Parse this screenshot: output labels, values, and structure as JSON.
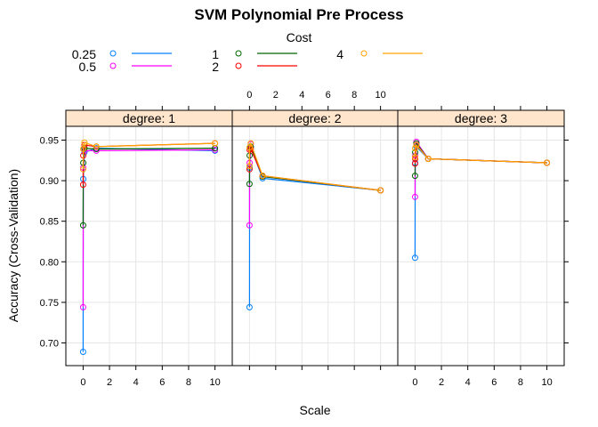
{
  "chart_data": {
    "type": "line",
    "title": "SVM Polynomial Pre Process",
    "xlabel": "Scale",
    "ylabel": "Accuracy (Cross-Validation)",
    "legend": {
      "title": "Cost",
      "placement": "top",
      "entries": [
        {
          "label": "0.25",
          "color": "#0080ff"
        },
        {
          "label": "0.5",
          "color": "#ff00ff"
        },
        {
          "label": "1",
          "color": "#006400"
        },
        {
          "label": "2",
          "color": "#ff0000"
        },
        {
          "label": "4",
          "color": "#ffa500"
        }
      ]
    },
    "x_ticks": [
      "0",
      "2",
      "4",
      "6",
      "8",
      "10"
    ],
    "y_ticks": [
      "0.70",
      "0.75",
      "0.80",
      "0.85",
      "0.90",
      "0.95"
    ],
    "xlim": [
      -0.5,
      10.5
    ],
    "ylim": [
      0.672,
      0.967
    ],
    "grid": true,
    "panels": [
      {
        "label": "degree: 1",
        "series": [
          {
            "name": "0.25",
            "x": [
              0.001,
              0.01,
              0.1,
              1,
              10
            ],
            "y": [
              0.689,
              0.902,
              0.935,
              0.94,
              0.937
            ]
          },
          {
            "name": "0.5",
            "x": [
              0.001,
              0.01,
              0.1,
              1,
              10
            ],
            "y": [
              0.744,
              0.916,
              0.937,
              0.937,
              0.938
            ]
          },
          {
            "name": "1",
            "x": [
              0.001,
              0.01,
              0.1,
              1,
              10
            ],
            "y": [
              0.845,
              0.922,
              0.94,
              0.939,
              0.94
            ]
          },
          {
            "name": "2",
            "x": [
              0.001,
              0.01,
              0.1,
              1,
              10
            ],
            "y": [
              0.895,
              0.931,
              0.944,
              0.942,
              0.946
            ]
          },
          {
            "name": "4",
            "x": [
              0.001,
              0.01,
              0.1,
              1,
              10
            ],
            "y": [
              0.914,
              0.939,
              0.947,
              0.942,
              0.946
            ]
          }
        ]
      },
      {
        "label": "degree: 2",
        "series": [
          {
            "name": "0.25",
            "x": [
              0.001,
              0.01,
              0.1,
              1,
              10
            ],
            "y": [
              0.744,
              0.916,
              0.941,
              0.903,
              0.888
            ]
          },
          {
            "name": "0.5",
            "x": [
              0.001,
              0.01,
              0.1,
              1,
              10
            ],
            "y": [
              0.845,
              0.922,
              0.945,
              0.905,
              0.888
            ]
          },
          {
            "name": "1",
            "x": [
              0.001,
              0.01,
              0.1,
              1,
              10
            ],
            "y": [
              0.896,
              0.931,
              0.942,
              0.905,
              0.888
            ]
          },
          {
            "name": "2",
            "x": [
              0.001,
              0.01,
              0.1,
              1,
              10
            ],
            "y": [
              0.914,
              0.938,
              0.939,
              0.906,
              0.888
            ]
          },
          {
            "name": "4",
            "x": [
              0.001,
              0.01,
              0.1,
              1,
              10
            ],
            "y": [
              0.918,
              0.941,
              0.946,
              0.906,
              0.888
            ]
          }
        ]
      },
      {
        "label": "degree: 3",
        "series": [
          {
            "name": "0.25",
            "x": [
              0.001,
              0.01,
              0.1,
              1,
              10
            ],
            "y": [
              0.805,
              0.922,
              0.942,
              0.927,
              0.922
            ]
          },
          {
            "name": "0.5",
            "x": [
              0.001,
              0.01,
              0.1,
              1,
              10
            ],
            "y": [
              0.88,
              0.931,
              0.948,
              0.927,
              0.922
            ]
          },
          {
            "name": "1",
            "x": [
              0.001,
              0.01,
              0.1,
              1,
              10
            ],
            "y": [
              0.906,
              0.935,
              0.946,
              0.927,
              0.922
            ]
          },
          {
            "name": "2",
            "x": [
              0.001,
              0.01,
              0.1,
              1,
              10
            ],
            "y": [
              0.921,
              0.927,
              0.944,
              0.927,
              0.922
            ]
          },
          {
            "name": "4",
            "x": [
              0.001,
              0.01,
              0.1,
              1,
              10
            ],
            "y": [
              0.929,
              0.94,
              0.944,
              0.927,
              0.922
            ]
          }
        ]
      }
    ]
  }
}
